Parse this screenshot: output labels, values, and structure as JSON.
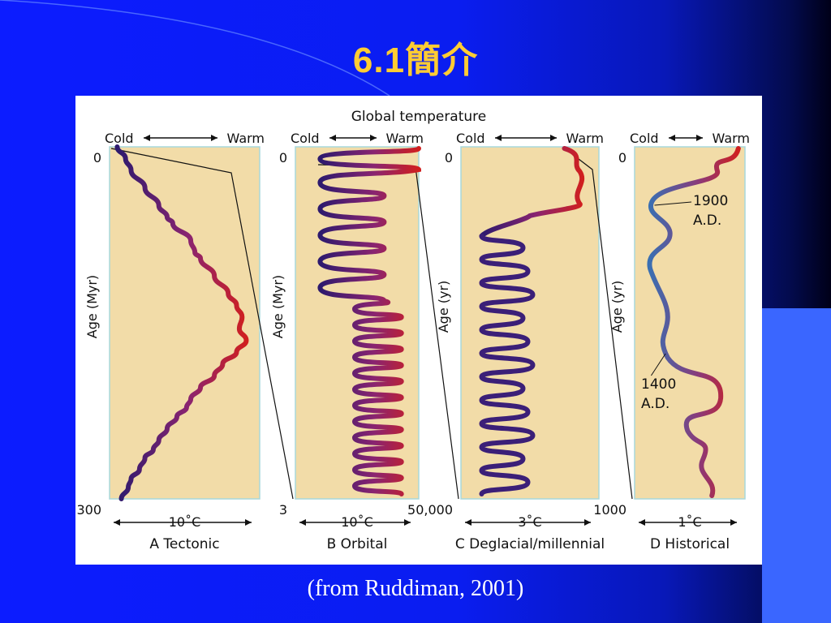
{
  "slide": {
    "title": "6.1簡介",
    "caption": "(from Ruddiman, 2001)"
  },
  "colors": {
    "panel_fill": "#f2dca8",
    "panel_border": "#a8d8dc",
    "cold": "#2d1a6e",
    "warm": "#d01f1f",
    "historical_cold": "#3a6fb2"
  },
  "chart_data": [
    {
      "type": "line",
      "title": "Global temperature",
      "panel": "A",
      "panel_label": "A  Tectonic",
      "axis_top_left": "Cold",
      "axis_top_right": "Warm",
      "ylabel": "Age (Myr)",
      "ylim": [
        0,
        300
      ],
      "y_top_label": "0",
      "y_bottom_label": "300",
      "scale_label": "10˚C",
      "curve": [
        [
          0.02,
          0
        ],
        [
          0.08,
          10
        ],
        [
          0.12,
          20
        ],
        [
          0.22,
          35
        ],
        [
          0.32,
          50
        ],
        [
          0.38,
          60
        ],
        [
          0.42,
          65
        ],
        [
          0.55,
          80
        ],
        [
          0.58,
          90
        ],
        [
          0.62,
          95
        ],
        [
          0.72,
          110
        ],
        [
          0.82,
          125
        ],
        [
          0.88,
          135
        ],
        [
          0.92,
          145
        ],
        [
          0.9,
          155
        ],
        [
          0.95,
          165
        ],
        [
          0.88,
          175
        ],
        [
          0.78,
          185
        ],
        [
          0.72,
          195
        ],
        [
          0.62,
          205
        ],
        [
          0.55,
          215
        ],
        [
          0.52,
          222
        ],
        [
          0.45,
          230
        ],
        [
          0.38,
          240
        ],
        [
          0.32,
          250
        ],
        [
          0.28,
          258
        ],
        [
          0.22,
          265
        ],
        [
          0.18,
          275
        ],
        [
          0.12,
          283
        ],
        [
          0.1,
          290
        ],
        [
          0.05,
          300
        ]
      ]
    },
    {
      "type": "line",
      "panel": "B",
      "panel_label": "B  Orbital",
      "axis_top_left": "Cold",
      "axis_top_right": "Warm",
      "ylabel": "Age (Myr)",
      "ylim": [
        0,
        3
      ],
      "y_top_label": "0",
      "y_bottom_label": "3",
      "scale_label": "10˚C",
      "oscillation": {
        "cycles_low_amp": 6,
        "cycles_high_amp": 12
      }
    },
    {
      "type": "line",
      "panel": "C",
      "panel_label": "C  Deglacial/millennial",
      "axis_top_left": "Cold",
      "axis_top_right": "Warm",
      "ylabel": "Age (yr)",
      "ylim": [
        0,
        50000
      ],
      "y_top_label": "0",
      "y_bottom_label": "50,000",
      "scale_label": "3˚C"
    },
    {
      "type": "line",
      "panel": "D",
      "panel_label": "D Historical",
      "axis_top_left": "Cold",
      "axis_top_right": "Warm",
      "ylabel": "Age (yr)",
      "ylim": [
        0,
        1000
      ],
      "y_top_label": "0",
      "y_bottom_label": "1000",
      "scale_label": "1˚C",
      "annotations": [
        {
          "line1": "1900",
          "line2": "A.D."
        },
        {
          "line1": "1400",
          "line2": "A.D."
        }
      ]
    }
  ]
}
